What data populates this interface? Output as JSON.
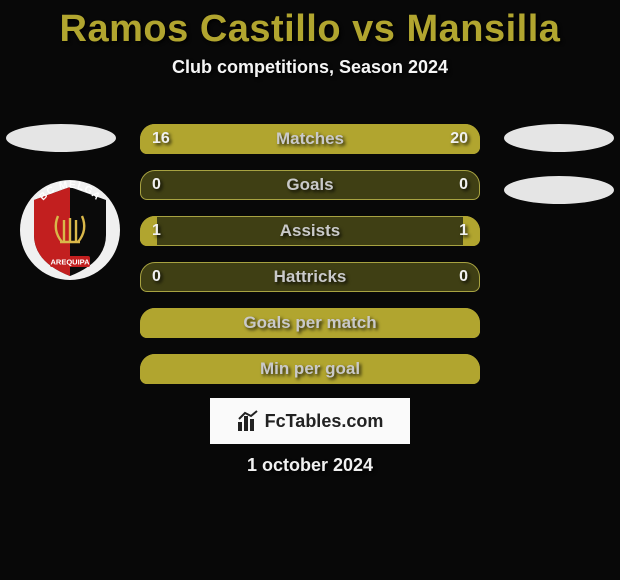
{
  "title": {
    "name1": "Ramos Castillo",
    "vs": "vs",
    "name2": "Mansilla",
    "color": "#b1a52f"
  },
  "subtitle": "Club competitions, Season 2024",
  "bars": {
    "max_ref": 20,
    "bar_bg": "#3f3f14",
    "bar_fill": "#b1a52f",
    "bar_border": "#a7a241",
    "label_color": "#c9c9c9",
    "items": [
      {
        "label": "Matches",
        "left": "16",
        "right": "20",
        "left_w": 0.42,
        "right_w": 0.58,
        "full": false,
        "show_vals": true
      },
      {
        "label": "Goals",
        "left": "0",
        "right": "0",
        "left_w": 0,
        "right_w": 0,
        "full": false,
        "show_vals": true
      },
      {
        "label": "Assists",
        "left": "1",
        "right": "1",
        "left_w": 0.05,
        "right_w": 0.05,
        "full": false,
        "show_vals": true
      },
      {
        "label": "Hattricks",
        "left": "0",
        "right": "0",
        "left_w": 0,
        "right_w": 0,
        "full": false,
        "show_vals": true
      },
      {
        "label": "Goals per match",
        "left": "",
        "right": "",
        "full": true,
        "show_vals": false
      },
      {
        "label": "Min per goal",
        "left": "",
        "right": "",
        "full": true,
        "show_vals": false
      }
    ]
  },
  "crest": {
    "outer_bg": "#f0f0f0",
    "top_text": "BC MELGA",
    "bottom_text": "AREQUIPA",
    "left_color": "#c21f1f",
    "right_color": "#0a0a0a",
    "emblem_color": "#d9b84a"
  },
  "footer": {
    "site": "FcTables.com",
    "date": "1 october 2024"
  },
  "colors": {
    "bg": "#080808",
    "oval": "#e5e5e5"
  }
}
